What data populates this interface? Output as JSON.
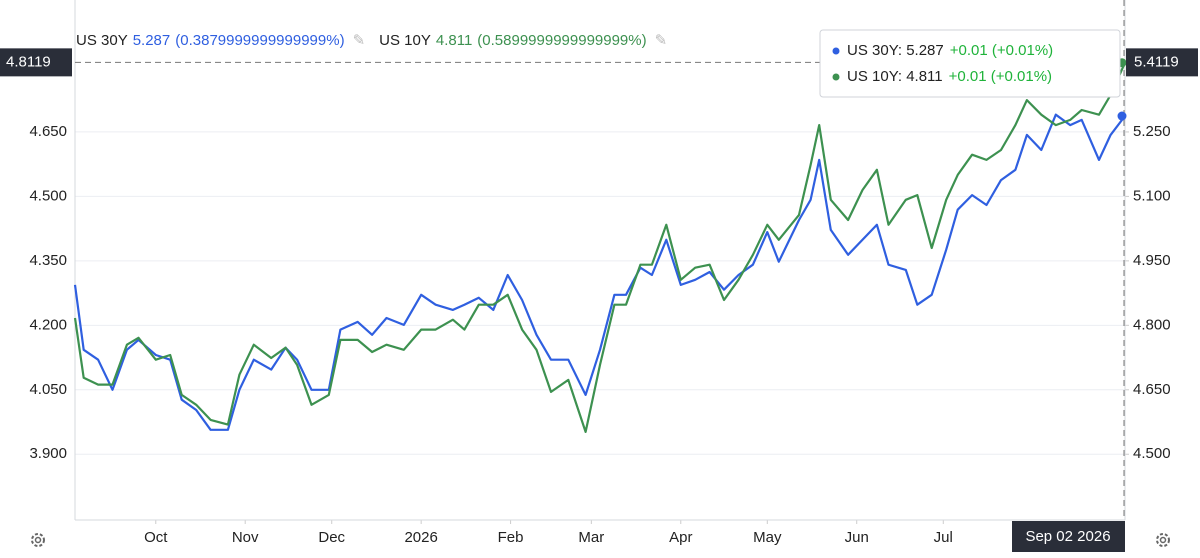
{
  "chart_data": {
    "type": "line",
    "x": [
      0,
      3,
      8,
      13,
      18,
      22,
      28,
      33,
      37,
      42,
      47,
      53,
      57,
      62,
      68,
      73,
      77,
      82,
      88,
      92,
      98,
      103,
      108,
      114,
      120,
      125,
      131,
      135,
      140,
      145,
      150,
      155,
      160,
      165,
      171,
      177,
      182,
      187,
      191,
      196,
      200,
      205,
      210,
      215,
      220,
      225,
      230,
      235,
      240,
      244,
      251,
      255,
      258,
      262,
      268,
      273,
      278,
      282,
      288,
      292,
      297,
      302,
      306,
      311,
      316,
      321,
      326,
      330,
      335,
      340,
      345,
      349,
      355,
      359,
      364
    ],
    "xlim": [
      0,
      364
    ],
    "xticks": [
      {
        "value": 28,
        "label": "Oct"
      },
      {
        "value": 59,
        "label": "Nov"
      },
      {
        "value": 89,
        "label": "Dec"
      },
      {
        "value": 120,
        "label": "2026"
      },
      {
        "value": 151,
        "label": "Feb"
      },
      {
        "value": 179,
        "label": "Mar"
      },
      {
        "value": 210,
        "label": "Apr"
      },
      {
        "value": 240,
        "label": "May"
      },
      {
        "value": 271,
        "label": "Jun"
      },
      {
        "value": 301,
        "label": "Jul"
      }
    ],
    "ylim": [
      3.747,
      4.957
    ],
    "yticks": [
      {
        "value": 3.9,
        "label": "3.900"
      },
      {
        "value": 4.05,
        "label": "4.050"
      },
      {
        "value": 4.2,
        "label": "4.200"
      },
      {
        "value": 4.35,
        "label": "4.350"
      },
      {
        "value": 4.5,
        "label": "4.500"
      },
      {
        "value": 4.65,
        "label": "4.650"
      }
    ],
    "y2lim": [
      4.347,
      5.557
    ],
    "y2ticks": [
      {
        "value": 4.5,
        "label": "4.500"
      },
      {
        "value": 4.65,
        "label": "4.650"
      },
      {
        "value": 4.8,
        "label": "4.800"
      },
      {
        "value": 4.95,
        "label": "4.950"
      },
      {
        "value": 5.1,
        "label": "5.100"
      },
      {
        "value": 5.25,
        "label": "5.250"
      }
    ],
    "grid": true,
    "series": [
      {
        "name": "US 30Y",
        "color": "#2f5fe0",
        "axis": "y2",
        "last_label": "5.287",
        "change_label": "(0.3879999999999999%)",
        "tooltip_label": "US 30Y: 5.287",
        "tooltip_change": "+0.01 (+0.01%)",
        "values": [
          4.894,
          4.743,
          4.72,
          4.65,
          4.743,
          4.766,
          4.731,
          4.72,
          4.627,
          4.603,
          4.557,
          4.557,
          4.65,
          4.72,
          4.697,
          4.748,
          4.72,
          4.65,
          4.65,
          4.79,
          4.808,
          4.778,
          4.817,
          4.801,
          4.871,
          4.848,
          4.836,
          4.848,
          4.864,
          4.836,
          4.917,
          4.859,
          4.778,
          4.72,
          4.72,
          4.638,
          4.743,
          4.871,
          4.871,
          4.934,
          4.917,
          4.999,
          4.894,
          4.906,
          4.924,
          4.883,
          4.917,
          4.941,
          5.017,
          4.948,
          5.045,
          5.092,
          5.185,
          5.022,
          4.964,
          4.999,
          5.034,
          4.941,
          4.929,
          4.848,
          4.871,
          4.976,
          5.069,
          5.103,
          5.08,
          5.138,
          5.162,
          5.243,
          5.208,
          5.29,
          5.266,
          5.278,
          5.185,
          5.243,
          5.287
        ]
      },
      {
        "name": "US 10Y",
        "color": "#3d9150",
        "last_label": "4.811",
        "change_label": "(0.5899999999999999%)",
        "tooltip_label": "US 10Y: 4.811",
        "tooltip_change": "+0.01 (+0.01%)",
        "values": [
          4.217,
          4.078,
          4.062,
          4.062,
          4.155,
          4.171,
          4.12,
          4.131,
          4.038,
          4.015,
          3.98,
          3.969,
          4.085,
          4.155,
          4.124,
          4.148,
          4.108,
          4.015,
          4.038,
          4.166,
          4.166,
          4.138,
          4.155,
          4.143,
          4.19,
          4.19,
          4.213,
          4.19,
          4.248,
          4.248,
          4.271,
          4.19,
          4.143,
          4.045,
          4.073,
          3.952,
          4.108,
          4.248,
          4.248,
          4.341,
          4.341,
          4.434,
          4.306,
          4.334,
          4.341,
          4.259,
          4.306,
          4.364,
          4.434,
          4.399,
          4.457,
          4.573,
          4.666,
          4.492,
          4.445,
          4.515,
          4.562,
          4.434,
          4.492,
          4.503,
          4.38,
          4.492,
          4.55,
          4.597,
          4.585,
          4.608,
          4.666,
          4.724,
          4.69,
          4.666,
          4.678,
          4.701,
          4.69,
          4.736,
          4.811
        ]
      }
    ],
    "crosshair": {
      "y": 4.8119,
      "y2": 5.4119,
      "x_label": "Sep 02 2026"
    }
  }
}
